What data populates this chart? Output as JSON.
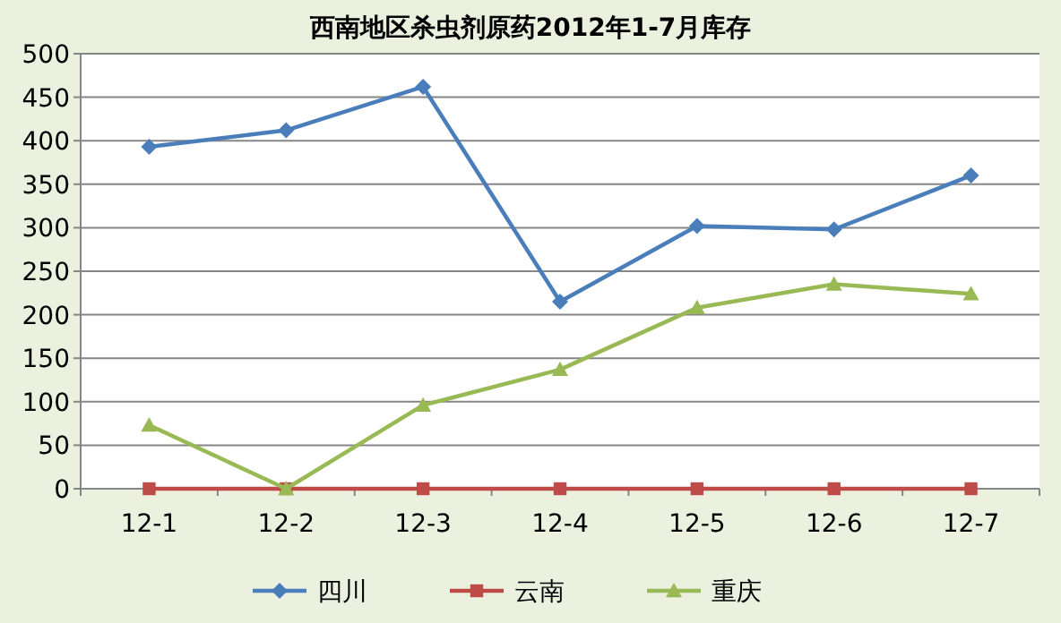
{
  "chart_data": {
    "type": "line",
    "title": "西南地区杀虫剂原药2012年1-7月库存",
    "categories": [
      "12-1",
      "12-2",
      "12-3",
      "12-4",
      "12-5",
      "12-6",
      "12-7"
    ],
    "series": [
      {
        "name": "四川",
        "color": "#4a7ebb",
        "marker": "diamond",
        "values": [
          393,
          412,
          462,
          215,
          302,
          298,
          360
        ]
      },
      {
        "name": "云南",
        "color": "#be4b48",
        "marker": "square",
        "values": [
          0,
          0,
          0,
          0,
          0,
          0,
          0
        ]
      },
      {
        "name": "重庆",
        "color": "#98b954",
        "marker": "triangle",
        "values": [
          73,
          0,
          96,
          137,
          208,
          235,
          224
        ]
      }
    ],
    "ylim": [
      0,
      500
    ],
    "yticks": [
      0,
      50,
      100,
      150,
      200,
      250,
      300,
      350,
      400,
      450,
      500
    ],
    "grid": "y",
    "legend": "bottom",
    "line_style": "solid"
  }
}
